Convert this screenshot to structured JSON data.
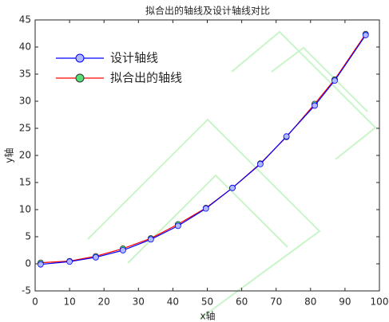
{
  "chart_data": {
    "type": "line",
    "title": "拟合出的轴线及设计轴线对比",
    "x_label": "x轴",
    "y_label": "y轴",
    "x": [
      1.6,
      10,
      17.6,
      25.5,
      33.6,
      41.5,
      49.6,
      57.3,
      65.4,
      73,
      81.2,
      87,
      96
    ],
    "series": [
      {
        "name": "设计轴线",
        "color": "#0000ff",
        "marker_color": "#b0b8ff",
        "values": [
          -0.1,
          0.4,
          1.2,
          2.5,
          4.5,
          7.0,
          10.2,
          14.0,
          18.4,
          23.5,
          29.2,
          33.8,
          42.2
        ]
      },
      {
        "name": "拟合出的轴线",
        "color": "#ff0000",
        "marker_color": "#55e075",
        "values": [
          0.2,
          0.5,
          1.4,
          2.8,
          4.7,
          7.3,
          10.3,
          14.0,
          18.5,
          23.4,
          29.5,
          34.0,
          42.4
        ]
      }
    ],
    "xlim": [
      0,
      100
    ],
    "xticks": [
      0,
      10,
      20,
      30,
      40,
      50,
      60,
      70,
      80,
      90,
      100
    ],
    "ylim": [
      -5,
      45
    ],
    "yticks": [
      -5,
      0,
      5,
      10,
      15,
      20,
      25,
      30,
      35,
      40,
      45
    ],
    "legend": "upper-left",
    "grid": false
  }
}
